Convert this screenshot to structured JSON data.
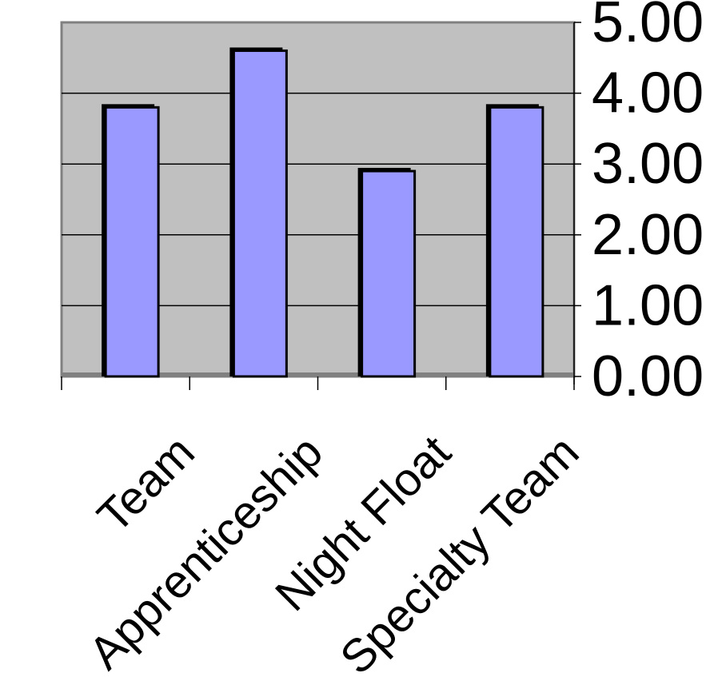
{
  "chart_data": {
    "type": "bar",
    "categories": [
      "Team",
      "Apprenticeship",
      "Night Float",
      "Specialty Team"
    ],
    "values": [
      3.8,
      4.6,
      2.9,
      3.8
    ],
    "ylim": [
      0,
      5
    ],
    "y_ticks": [
      "0.00",
      "1.00",
      "2.00",
      "3.00",
      "4.00",
      "5.00"
    ],
    "y_axis_side": "right",
    "grid": true,
    "legend": "none",
    "colors": {
      "bar_fill": "#9999ff",
      "bar_shadow": "#000000",
      "plot_background": "#c0c0c0",
      "plot_border": "#808080",
      "gridline": "#000000",
      "axis": "#000000"
    }
  }
}
